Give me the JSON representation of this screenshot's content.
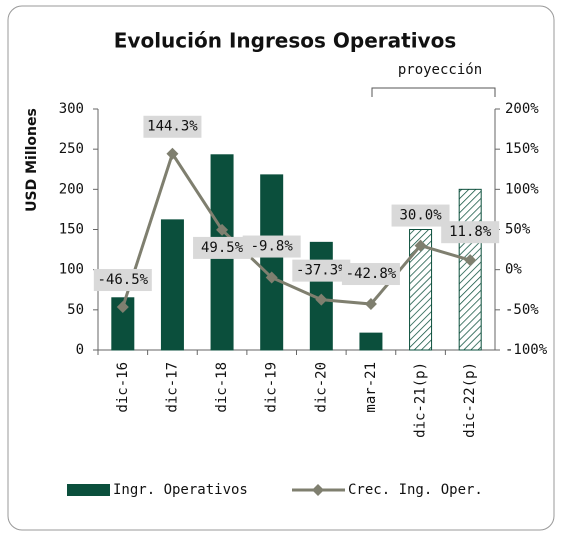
{
  "chart_data": {
    "type": "bar_line",
    "title": "Evolución Ingresos Operativos",
    "annotation": "proyección",
    "y_label": "USD Millones",
    "categories": [
      "dic-16",
      "dic-17",
      "dic-18",
      "dic-19",
      "dic-20",
      "mar-21",
      "dic-21(p)",
      "dic-22(p)"
    ],
    "series": [
      {
        "name": "Ingr. Operativos",
        "type": "bar",
        "color": "#0b4f3c",
        "values": [
          65,
          162,
          243,
          218,
          134,
          21,
          150,
          200
        ],
        "bar_styles": [
          "solid",
          "solid",
          "solid",
          "solid",
          "solid",
          "solid",
          "hatched",
          "hatched"
        ]
      },
      {
        "name": "Crec. Ing. Oper.",
        "type": "line",
        "axis": "y2",
        "color": "#7f7f6f",
        "values": [
          -46.5,
          144.3,
          49.5,
          -9.8,
          -37.3,
          -42.8,
          30.0,
          11.8
        ],
        "value_labels": [
          "-46.5%",
          "144.3%",
          "49.5%",
          "-9.8%",
          "-37.3%",
          "-42.8%",
          "30.0%",
          "11.8%"
        ]
      }
    ],
    "ylim": [
      0,
      300
    ],
    "yticks": [
      0,
      50,
      100,
      150,
      200,
      250,
      300
    ],
    "y2lim": [
      -100,
      200
    ],
    "y2ticks": [
      {
        "value": -100,
        "label": "-100%"
      },
      {
        "value": -50,
        "label": "-50%"
      },
      {
        "value": 0,
        "label": "0%"
      },
      {
        "value": 50,
        "label": "50%"
      },
      {
        "value": 100,
        "label": "100%"
      },
      {
        "value": 150,
        "label": "150%"
      },
      {
        "value": 200,
        "label": "200%"
      }
    ],
    "grid": false
  }
}
